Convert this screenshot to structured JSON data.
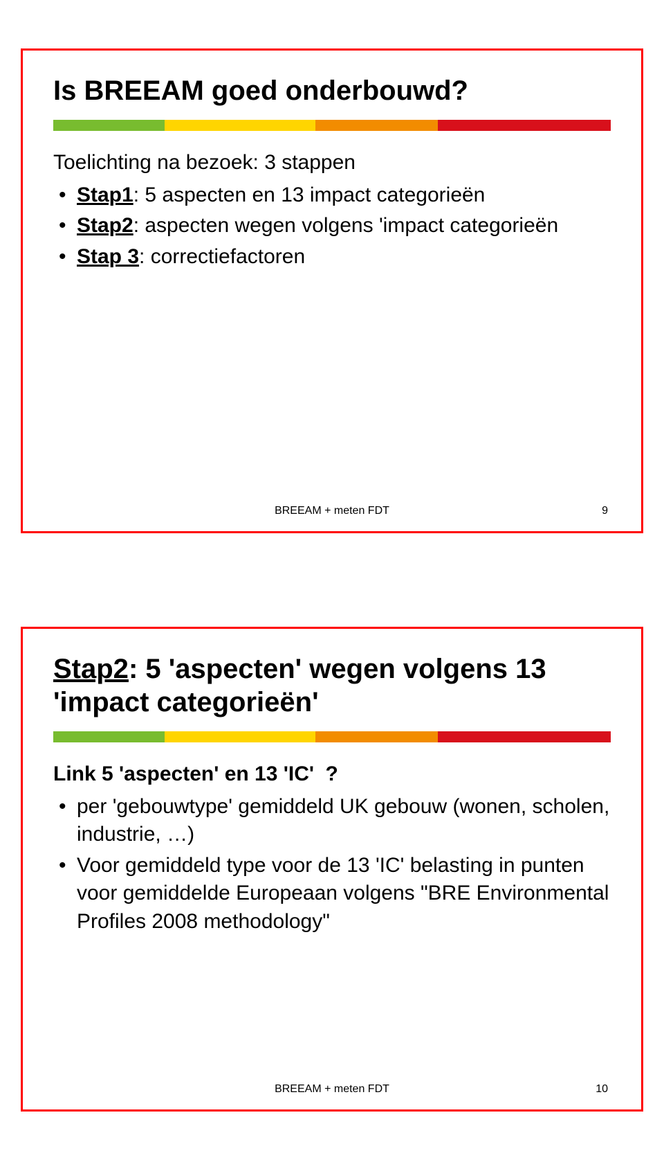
{
  "slide1": {
    "title": "Is BREEAM goed onderbouwd?",
    "lead": "Toelichting na bezoek: 3 stappen",
    "b1_label": "Stap1",
    "b1_rest": ": 5 aspecten en 13 impact categorieën",
    "b2_label": "Stap2",
    "b2_rest": ": aspecten wegen volgens 'impact categorieën",
    "b3_label": "Stap 3",
    "b3_rest": ": correctiefactoren",
    "footer_text": "BREEAM + meten FDT",
    "footer_page": "9"
  },
  "slide2": {
    "title_label": "Stap2",
    "title_rest": ": 5 'aspecten' wegen volgens 13 'impact categorieën'",
    "lead_pre": "Link 5 'aspecten' en 13 'IC'",
    "lead_q": "?",
    "b1": "per 'gebouwtype' gemiddeld UK gebouw (wonen, scholen, industrie, …)",
    "b2": "Voor gemiddeld type voor de 13 'IC' belasting in punten voor gemiddelde Europeaan volgens \"BRE Environmental Profiles 2008 methodology\"",
    "footer_text": "BREEAM + meten FDT",
    "footer_page": "10"
  },
  "colors": {
    "border": "#ff0000",
    "green": "#78bc2f",
    "yellow": "#ffd500",
    "orange": "#f28c00",
    "red": "#d8101b"
  }
}
